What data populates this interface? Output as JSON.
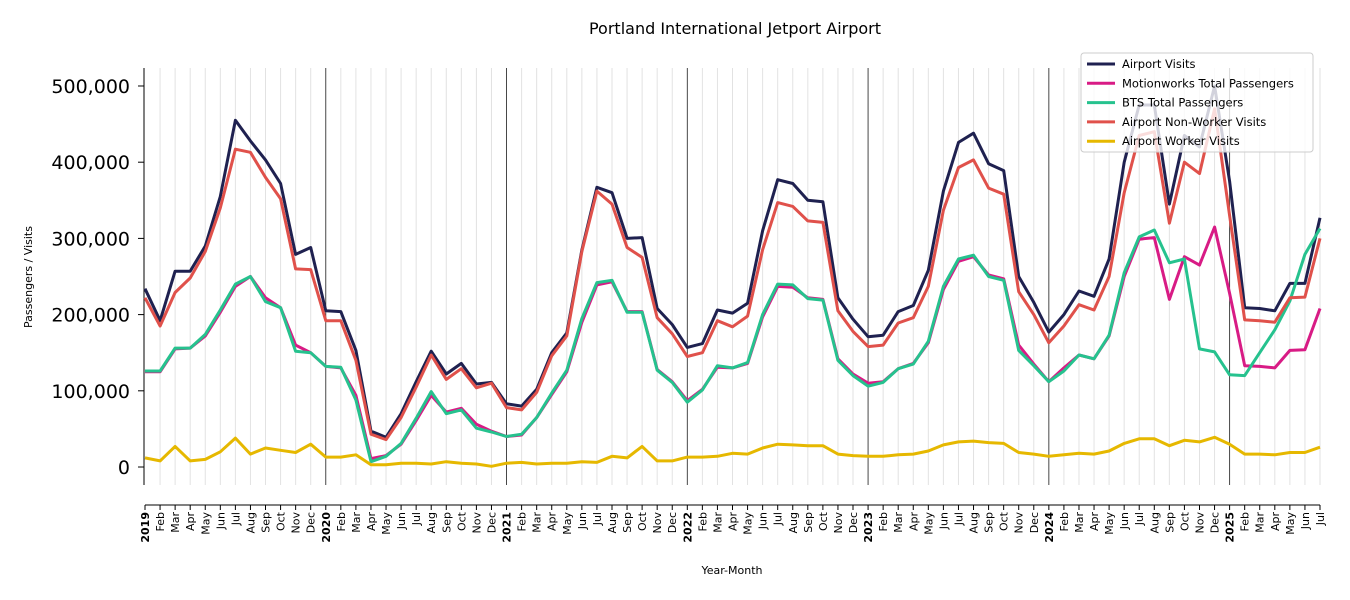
{
  "chart_data": {
    "type": "line",
    "title": "Portland International Jetport Airport",
    "xlabel": "Year-Month",
    "ylabel": "Passengers / Visits",
    "ylim": [
      -23600,
      523600
    ],
    "yticks": [
      0,
      100000,
      200000,
      300000,
      400000,
      500000
    ],
    "ytick_labels": [
      "0",
      "100,000",
      "200,000",
      "300,000",
      "400,000",
      "500,000"
    ],
    "grid": "vertical monthly gridlines, dark lines at each year start",
    "legend_position": "top-right",
    "x_labels": [
      "2019",
      "Feb",
      "Mar",
      "Apr",
      "May",
      "Jun",
      "Jul",
      "Aug",
      "Sep",
      "Oct",
      "Nov",
      "Dec",
      "2020",
      "Feb",
      "Mar",
      "Apr",
      "May",
      "Jun",
      "Jul",
      "Aug",
      "Sep",
      "Oct",
      "Nov",
      "Dec",
      "2021",
      "Feb",
      "Mar",
      "Apr",
      "May",
      "Jun",
      "Jul",
      "Aug",
      "Sep",
      "Oct",
      "Nov",
      "Dec",
      "2022",
      "Feb",
      "Mar",
      "Apr",
      "May",
      "Jun",
      "Jul",
      "Aug",
      "Sep",
      "Oct",
      "Nov",
      "Dec",
      "2023",
      "Feb",
      "Mar",
      "Apr",
      "May",
      "Jun",
      "Jul",
      "Aug",
      "Sep",
      "Oct",
      "Nov",
      "Dec",
      "2024",
      "Feb",
      "Mar",
      "Apr",
      "May",
      "Jun",
      "Jul",
      "Aug",
      "Sep",
      "Oct",
      "Nov",
      "Dec",
      "2025",
      "Feb",
      "Mar",
      "Apr",
      "May",
      "Jun",
      "Jul"
    ],
    "series": [
      {
        "name": "Airport Visits",
        "color": "#1f2150",
        "values": [
          234000,
          192000,
          257000,
          257000,
          290000,
          355000,
          455000,
          428000,
          403000,
          372000,
          279000,
          288000,
          205000,
          204000,
          153000,
          47000,
          39000,
          70000,
          112000,
          152000,
          122000,
          136000,
          109000,
          111000,
          83000,
          80000,
          102000,
          150000,
          176000,
          285000,
          367000,
          360000,
          300000,
          301000,
          208000,
          187000,
          157000,
          162000,
          206000,
          202000,
          215000,
          310000,
          377000,
          372000,
          350000,
          348000,
          222000,
          194000,
          171000,
          173000,
          204000,
          212000,
          258000,
          362000,
          426000,
          438000,
          398000,
          389000,
          250000,
          216000,
          177000,
          200000,
          231000,
          224000,
          273000,
          400000,
          475000,
          475000,
          345000,
          435000,
          420000,
          500000,
          375000,
          209000,
          208000,
          205000,
          241000,
          241000,
          327000
        ]
      },
      {
        "name": "Motionworks Total Passengers",
        "color": "#d81b85",
        "values": [
          125000,
          125000,
          155000,
          156000,
          172000,
          203000,
          237000,
          250000,
          222000,
          209000,
          160000,
          150000,
          132000,
          130000,
          94000,
          11000,
          15000,
          30000,
          61000,
          94000,
          72000,
          77000,
          56000,
          47000,
          40000,
          42000,
          65000,
          95000,
          125000,
          190000,
          239000,
          243000,
          204000,
          204000,
          128000,
          112000,
          87000,
          102000,
          131000,
          130000,
          136000,
          197000,
          237000,
          236000,
          222000,
          220000,
          142000,
          122000,
          110000,
          112000,
          129000,
          136000,
          163000,
          233000,
          270000,
          276000,
          252000,
          247000,
          160000,
          135000,
          112000,
          130000,
          147000,
          142000,
          172000,
          250000,
          299000,
          301000,
          220000,
          276000,
          265000,
          315000,
          228000,
          133000,
          132000,
          130000,
          153000,
          154000,
          208000
        ]
      },
      {
        "name": "BTS Total Passengers",
        "color": "#26c28e",
        "values": [
          126000,
          126000,
          156000,
          156000,
          174000,
          206000,
          240000,
          250000,
          217000,
          209000,
          152000,
          150000,
          132000,
          131000,
          88000,
          7000,
          14000,
          31000,
          64000,
          99000,
          70000,
          75000,
          51000,
          46000,
          40000,
          43000,
          65000,
          97000,
          127000,
          195000,
          242000,
          245000,
          203000,
          203000,
          127000,
          111000,
          85000,
          101000,
          133000,
          130000,
          137000,
          200000,
          240000,
          239000,
          221000,
          219000,
          140000,
          120000,
          106000,
          111000,
          129000,
          135000,
          165000,
          237000,
          273000,
          278000,
          250000,
          245000,
          153000,
          133000,
          112000,
          126000,
          147000,
          142000,
          173000,
          255000,
          302000,
          311000,
          268000,
          273000,
          155000,
          151000,
          121000,
          120000,
          150000,
          180000,
          218000,
          279000,
          313000
        ]
      },
      {
        "name": "Airport Non-Worker Visits",
        "color": "#e0514b",
        "values": [
          222000,
          185000,
          229000,
          248000,
          283000,
          340000,
          417000,
          413000,
          380000,
          352000,
          260000,
          259000,
          192000,
          192000,
          140000,
          43000,
          36000,
          65000,
          105000,
          147000,
          115000,
          129000,
          104000,
          110000,
          78000,
          75000,
          98000,
          146000,
          172000,
          283000,
          362000,
          345000,
          288000,
          275000,
          196000,
          175000,
          145000,
          150000,
          192000,
          184000,
          198000,
          285000,
          347000,
          342000,
          323000,
          321000,
          205000,
          178000,
          158000,
          160000,
          189000,
          196000,
          237000,
          337000,
          393000,
          403000,
          366000,
          358000,
          230000,
          200000,
          163000,
          185000,
          213000,
          206000,
          250000,
          360000,
          435000,
          440000,
          320000,
          400000,
          385000,
          470000,
          330000,
          193000,
          192000,
          190000,
          222000,
          223000,
          300000
        ]
      },
      {
        "name": "Airport Worker Visits",
        "color": "#e6b800",
        "values": [
          12000,
          8000,
          27000,
          8000,
          10000,
          20000,
          38000,
          17000,
          25000,
          22000,
          19000,
          30000,
          13000,
          13000,
          16000,
          3000,
          3000,
          5000,
          5000,
          4000,
          7000,
          5000,
          4000,
          1000,
          5000,
          6000,
          4000,
          5000,
          5000,
          7000,
          6000,
          14000,
          12000,
          27000,
          8000,
          8000,
          13000,
          13000,
          14000,
          18000,
          17000,
          25000,
          30000,
          29000,
          28000,
          28000,
          17000,
          15000,
          14000,
          14000,
          16000,
          17000,
          21000,
          29000,
          33000,
          34000,
          32000,
          31000,
          19000,
          17000,
          14000,
          16000,
          18000,
          17000,
          21000,
          31000,
          37000,
          37000,
          28000,
          35000,
          33000,
          39000,
          30000,
          17000,
          17000,
          16000,
          19000,
          19000,
          26000
        ]
      }
    ]
  }
}
